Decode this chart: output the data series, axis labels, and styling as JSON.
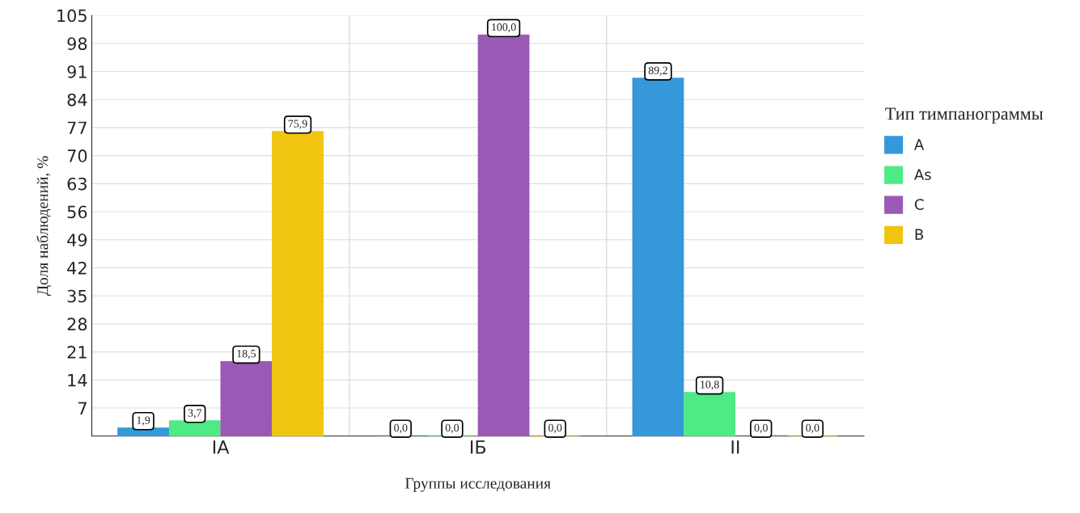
{
  "chart_data": {
    "type": "bar",
    "xlabel": "Группы исследования",
    "ylabel": "Доля наблюдений, %",
    "legend_title": "Тип тимпанограммы",
    "categories": [
      "IA",
      "IБ",
      "II"
    ],
    "series": [
      {
        "name": "A",
        "color": "#3498db",
        "values": [
          1.9,
          0.0,
          89.2
        ],
        "value_labels": [
          "1,9",
          "0,0",
          "89,2"
        ]
      },
      {
        "name": "As",
        "color": "#4eea85",
        "values": [
          3.7,
          0.0,
          10.8
        ],
        "value_labels": [
          "3,7",
          "0,0",
          "10,8"
        ]
      },
      {
        "name": "C",
        "color": "#9b59b6",
        "values": [
          18.5,
          100.0,
          0.0
        ],
        "value_labels": [
          "18,5",
          "100,0",
          "0,0"
        ]
      },
      {
        "name": "B",
        "color": "#f1c40f",
        "values": [
          75.9,
          0.0,
          0.0
        ],
        "value_labels": [
          "75,9",
          "0,0",
          "0,0"
        ]
      }
    ],
    "ylim": [
      0,
      105
    ],
    "yticks": [
      {
        "value": 0,
        "label": null
      },
      7,
      14,
      21,
      28,
      35,
      42,
      49,
      56,
      63,
      70,
      77,
      84,
      91,
      98,
      105
    ],
    "grid": true,
    "legend": "right"
  }
}
